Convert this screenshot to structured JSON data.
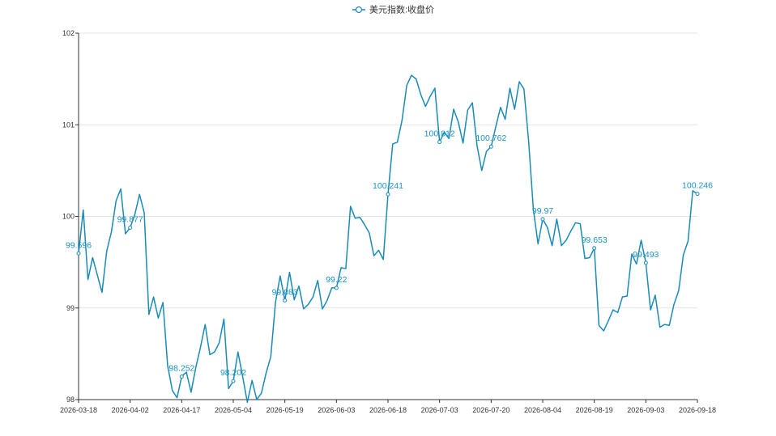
{
  "legend": {
    "series_name": "美元指数:收盘价"
  },
  "chart_data": {
    "type": "line",
    "title": "",
    "xlabel": "",
    "ylabel": "",
    "ylim": [
      98,
      102
    ],
    "yticks": [
      98,
      99,
      100,
      101,
      102
    ],
    "xticks": [
      "2026-03-18",
      "2026-04-02",
      "2026-04-17",
      "2026-05-04",
      "2026-05-19",
      "2026-06-03",
      "2026-06-18",
      "2026-07-03",
      "2026-07-20",
      "2026-08-04",
      "2026-08-19",
      "2026-09-03",
      "2026-09-18"
    ],
    "grid": {
      "horizontal": true,
      "vertical": false
    },
    "legend_position": "top-center",
    "color": "#1a8bb8",
    "series": [
      {
        "name": "美元指数:收盘价",
        "values": [
          99.596,
          100.07,
          99.31,
          99.55,
          99.36,
          99.17,
          99.62,
          99.83,
          100.17,
          100.3,
          99.81,
          99.877,
          100.02,
          100.24,
          100.04,
          98.93,
          99.12,
          98.89,
          99.06,
          98.37,
          98.1,
          98.02,
          98.252,
          98.3,
          98.08,
          98.35,
          98.57,
          98.82,
          98.49,
          98.52,
          98.62,
          98.88,
          98.12,
          98.202,
          98.52,
          98.25,
          97.97,
          98.21,
          98.0,
          98.07,
          98.29,
          98.47,
          99.06,
          99.35,
          99.083,
          99.39,
          99.09,
          99.24,
          98.99,
          99.04,
          99.12,
          99.3,
          98.99,
          99.08,
          99.22,
          99.22,
          99.44,
          99.43,
          100.11,
          99.98,
          99.99,
          99.91,
          99.82,
          99.57,
          99.63,
          99.53,
          100.241,
          100.79,
          100.81,
          101.05,
          101.43,
          101.54,
          101.5,
          101.33,
          101.2,
          101.31,
          101.4,
          100.812,
          100.92,
          100.85,
          101.17,
          101.03,
          100.8,
          101.16,
          101.24,
          100.77,
          100.5,
          100.71,
          100.762,
          100.98,
          101.19,
          101.06,
          101.4,
          101.17,
          101.47,
          101.39,
          100.82,
          100.08,
          99.7,
          99.97,
          99.88,
          99.68,
          99.97,
          99.68,
          99.74,
          99.84,
          99.93,
          99.92,
          99.54,
          99.55,
          99.653,
          98.81,
          98.75,
          98.86,
          98.98,
          98.95,
          99.12,
          99.13,
          99.59,
          99.48,
          99.74,
          99.493,
          98.98,
          99.14,
          98.79,
          98.82,
          98.81,
          99.04,
          99.19,
          99.58,
          99.73,
          100.28,
          100.246
        ],
        "labels": [
          {
            "index": 0,
            "text": "99.596"
          },
          {
            "index": 11,
            "text": "99.877"
          },
          {
            "index": 22,
            "text": "98.252"
          },
          {
            "index": 33,
            "text": "98.202"
          },
          {
            "index": 44,
            "text": "99.083"
          },
          {
            "index": 55,
            "text": "99.22"
          },
          {
            "index": 66,
            "text": "100.241"
          },
          {
            "index": 77,
            "text": "100.812"
          },
          {
            "index": 88,
            "text": "100.762"
          },
          {
            "index": 99,
            "text": "99.97"
          },
          {
            "index": 110,
            "text": "99.653"
          },
          {
            "index": 121,
            "text": "99.493"
          },
          {
            "index": 132,
            "text": "100.246"
          }
        ]
      }
    ]
  }
}
